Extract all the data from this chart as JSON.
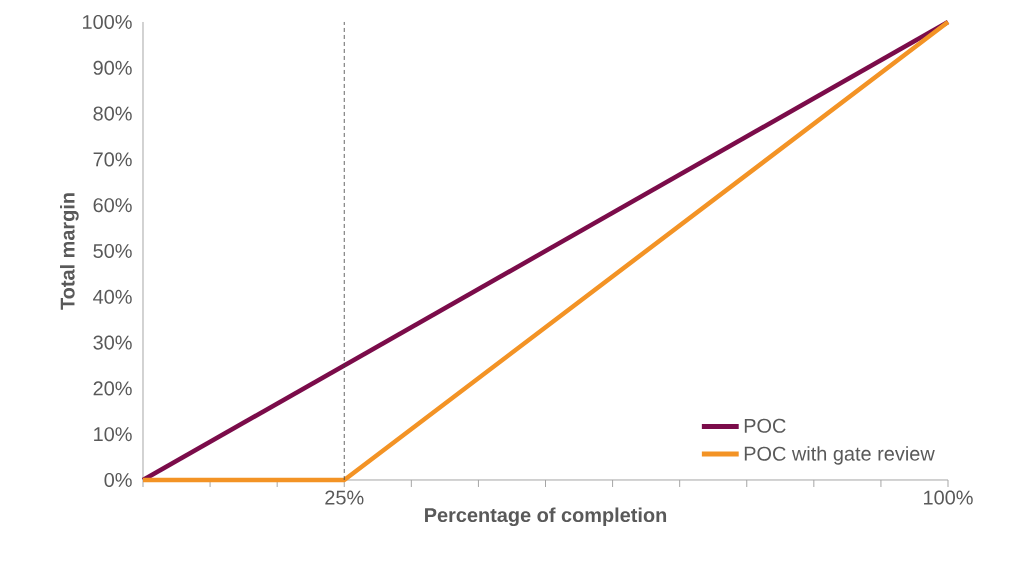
{
  "chart_data": {
    "type": "line",
    "xlabel": "Percentage of completion",
    "ylabel": "Total margin",
    "xlim": [
      0,
      100
    ],
    "ylim": [
      0,
      100
    ],
    "xticks": [
      {
        "value": 0,
        "label": null
      },
      {
        "value": 8.333,
        "label": null
      },
      {
        "value": 16.667,
        "label": null
      },
      {
        "value": 25,
        "label": "25%"
      },
      {
        "value": 33.333,
        "label": null
      },
      {
        "value": 41.667,
        "label": null
      },
      {
        "value": 50,
        "label": null
      },
      {
        "value": 58.333,
        "label": null
      },
      {
        "value": 66.667,
        "label": null
      },
      {
        "value": 75,
        "label": null
      },
      {
        "value": 83.333,
        "label": null
      },
      {
        "value": 91.667,
        "label": null
      },
      {
        "value": 100,
        "label": "100%"
      }
    ],
    "yticks": [
      {
        "value": 0,
        "label": "0%"
      },
      {
        "value": 10,
        "label": "10%"
      },
      {
        "value": 20,
        "label": "20%"
      },
      {
        "value": 30,
        "label": "30%"
      },
      {
        "value": 40,
        "label": "40%"
      },
      {
        "value": 50,
        "label": "50%"
      },
      {
        "value": 60,
        "label": "60%"
      },
      {
        "value": 70,
        "label": "70%"
      },
      {
        "value": 80,
        "label": "80%"
      },
      {
        "value": 90,
        "label": "90%"
      },
      {
        "value": 100,
        "label": "100%"
      }
    ],
    "series": [
      {
        "name": "POC",
        "color": "#7b0c4a",
        "x": [
          0,
          100
        ],
        "values": [
          0,
          100
        ]
      },
      {
        "name": "POC with gate review",
        "color": "#f39325",
        "x": [
          0,
          25,
          100
        ],
        "values": [
          0,
          0,
          100
        ]
      }
    ],
    "ref_lines": [
      {
        "axis": "x",
        "value": 25,
        "color": "#404040",
        "line_style": "dashed"
      }
    ],
    "legend": "bottom right",
    "marker": "none",
    "line_style": "solid",
    "grid": false
  }
}
